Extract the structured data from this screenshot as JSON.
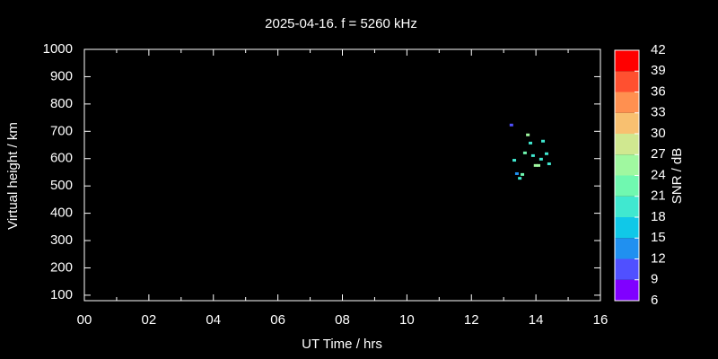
{
  "chart_data": {
    "type": "scatter",
    "title": "2025-04-16. f = 5260 kHz",
    "x_label": "UT Time / hrs",
    "y_label": "Virtual height / km",
    "xlim": [
      0,
      16
    ],
    "xticks": [
      {
        "value": 0,
        "label": "00"
      },
      {
        "value": 2,
        "label": "02"
      },
      {
        "value": 4,
        "label": "04"
      },
      {
        "value": 6,
        "label": "06"
      },
      {
        "value": 8,
        "label": "08"
      },
      {
        "value": 10,
        "label": "10"
      },
      {
        "value": 12,
        "label": "12"
      },
      {
        "value": 14,
        "label": "14"
      },
      {
        "value": 16,
        "label": "16"
      }
    ],
    "xminorticks": [
      1,
      3,
      5,
      7,
      9,
      11,
      13,
      15
    ],
    "ylim": [
      80,
      1000
    ],
    "yticks": [
      100,
      200,
      300,
      400,
      500,
      600,
      700,
      800,
      900,
      1000
    ],
    "points": {
      "x": [
        13.24,
        13.75,
        14.22,
        13.83,
        13.66,
        13.91,
        14.33,
        14.16,
        13.33,
        14.41,
        13.99,
        14.08,
        13.41,
        13.58,
        13.5
      ],
      "y": [
        723,
        687,
        664,
        657,
        621,
        611,
        618,
        598,
        594,
        581,
        575,
        575,
        545,
        542,
        528
      ],
      "snr": [
        10,
        25,
        19,
        19,
        23,
        19,
        19,
        20,
        19,
        20,
        25,
        25,
        14,
        22,
        19
      ]
    },
    "colorbar": {
      "label": "SNR / dB",
      "lim": [
        6,
        42
      ],
      "ticks": [
        6,
        9,
        12,
        15,
        18,
        21,
        24,
        27,
        30,
        33,
        36,
        39,
        42
      ],
      "colors": [
        "#8000ff",
        "#5050ff",
        "#2090f0",
        "#10c8e8",
        "#40e8d0",
        "#70f8b0",
        "#a0f8a0",
        "#d0e890",
        "#f8c070",
        "#ff9050",
        "#ff5030",
        "#ff0000"
      ]
    }
  }
}
